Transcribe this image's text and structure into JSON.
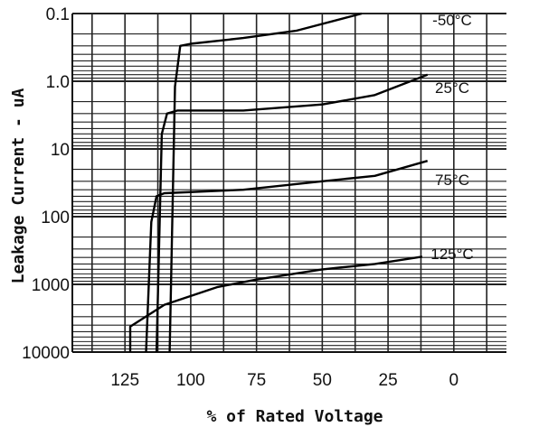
{
  "chart_data": {
    "type": "line",
    "title": "",
    "xlabel": "% of Rated Voltage",
    "ylabel": "Leakage Current - uA",
    "x_reversed": true,
    "xlim": [
      145,
      -20
    ],
    "xticks": [
      "125",
      "100",
      "75",
      "50",
      "25",
      "0"
    ],
    "y_scale": "log",
    "y_inverted": true,
    "ylim": [
      0.1,
      10000
    ],
    "yticks": [
      "0.1",
      "1.0",
      "10",
      "100",
      "1000",
      "10000"
    ],
    "grid": true,
    "series": [
      {
        "name": "-50°C",
        "points": [
          [
            108,
            10000
          ],
          [
            106,
            1.2
          ],
          [
            104,
            0.3
          ],
          [
            100,
            0.28
          ],
          [
            80,
            0.23
          ],
          [
            60,
            0.18
          ],
          [
            35,
            0.1
          ]
        ]
      },
      {
        "name": "25°C",
        "points": [
          [
            113,
            10000
          ],
          [
            111,
            6
          ],
          [
            109,
            3
          ],
          [
            105,
            2.7
          ],
          [
            80,
            2.7
          ],
          [
            50,
            2.2
          ],
          [
            30,
            1.6
          ],
          [
            10,
            0.8
          ]
        ]
      },
      {
        "name": "75°C",
        "points": [
          [
            117,
            10000
          ],
          [
            115,
            120
          ],
          [
            113,
            50
          ],
          [
            110,
            45
          ],
          [
            80,
            40
          ],
          [
            50,
            30
          ],
          [
            30,
            25
          ],
          [
            10,
            15
          ]
        ]
      },
      {
        "name": "125°C",
        "points": [
          [
            123,
            10000
          ],
          [
            123,
            4200
          ],
          [
            110,
            2000
          ],
          [
            90,
            1100
          ],
          [
            75,
            850
          ],
          [
            50,
            600
          ],
          [
            30,
            500
          ],
          [
            12,
            390
          ]
        ]
      }
    ]
  }
}
